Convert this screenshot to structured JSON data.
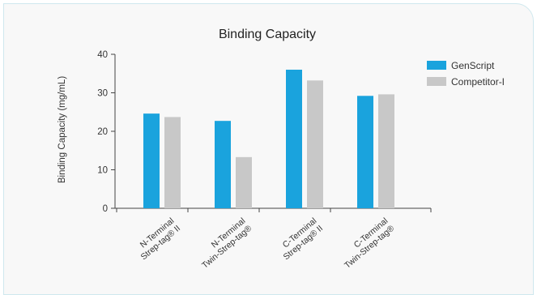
{
  "chart_data": {
    "type": "bar",
    "title": "Binding Capacity",
    "ylabel": "Binding Capacity (mg/mL)",
    "xlabel": "",
    "ylim": [
      0,
      40
    ],
    "yticks": [
      0,
      10,
      20,
      30,
      40
    ],
    "categories": [
      [
        "N-Terminal",
        "Strep-tag® II"
      ],
      [
        "N-Terminal",
        "Twin-Strep-tag®"
      ],
      [
        "C-Terminal",
        "Strep-tag® II"
      ],
      [
        "C-Terminal",
        "Twin-Strep-tag®"
      ]
    ],
    "series": [
      {
        "name": "GenScript",
        "color": "#1aa3dd",
        "values": [
          24.6,
          22.7,
          36.0,
          29.2
        ]
      },
      {
        "name": "Competitor-I",
        "color": "#c8c8c8",
        "values": [
          23.7,
          13.3,
          33.2,
          29.6
        ]
      }
    ],
    "legend_position": "top-right",
    "grid": false
  }
}
